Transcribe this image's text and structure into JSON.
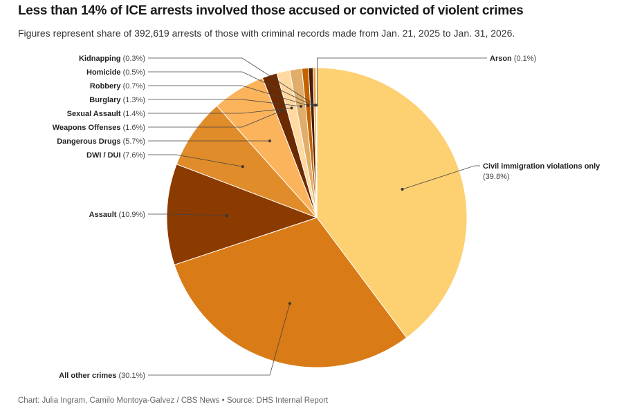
{
  "title": "Less than 14% of ICE arrests involved those accused or convicted of violent crimes",
  "subtitle": "Figures represent share of 392,619 arrests of those with criminal records made from Jan. 21, 2025 to Jan. 31, 2026.",
  "credit": "Chart: Julia Ingram, Camilo Montoya-Galvez / CBS News • Source: DHS Internal Report",
  "chart_data": {
    "type": "pie",
    "title": "Less than 14% of ICE arrests involved those accused or convicted of violent crimes",
    "unit": "%",
    "slices": [
      {
        "name": "Civil immigration violations only",
        "value": 39.8,
        "label": "(39.8%)",
        "color": "#FDD072"
      },
      {
        "name": "All other crimes",
        "value": 30.1,
        "label": "(30.1%)",
        "color": "#D97B16"
      },
      {
        "name": "Assault",
        "value": 10.9,
        "label": "(10.9%)",
        "color": "#8B3A00"
      },
      {
        "name": "DWI / DUI",
        "value": 7.6,
        "label": "(7.6%)",
        "color": "#E08C2A"
      },
      {
        "name": "Dangerous Drugs",
        "value": 5.7,
        "label": "(5.7%)",
        "color": "#FBB35C"
      },
      {
        "name": "Weapons Offenses",
        "value": 1.6,
        "label": "(1.6%)",
        "color": "#6B2A00"
      },
      {
        "name": "Sexual Assault",
        "value": 1.4,
        "label": "(1.4%)",
        "color": "#FFD9A0"
      },
      {
        "name": "Burglary",
        "value": 1.3,
        "label": "(1.3%)",
        "color": "#E0AE6A"
      },
      {
        "name": "Robbery",
        "value": 0.7,
        "label": "(0.7%)",
        "color": "#C46200"
      },
      {
        "name": "Homicide",
        "value": 0.5,
        "label": "(0.5%)",
        "color": "#4A1E00"
      },
      {
        "name": "Kidnapping",
        "value": 0.3,
        "label": "(0.3%)",
        "color": "#E89A40"
      },
      {
        "name": "Arson",
        "value": 0.1,
        "label": "(0.1%)",
        "color": "#FFE3A8"
      }
    ]
  }
}
